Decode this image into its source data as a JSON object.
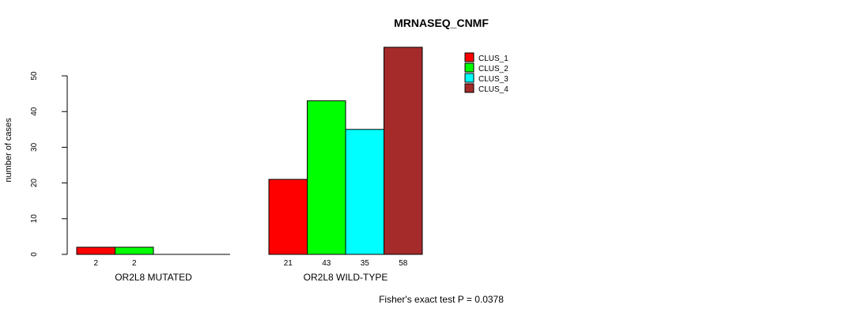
{
  "chart_data": {
    "type": "bar",
    "title": "MRNASEQ_CNMF",
    "ylabel": "number of cases",
    "xlabel": "",
    "ylim": [
      0,
      58
    ],
    "yticks": [
      0,
      10,
      20,
      30,
      40,
      50
    ],
    "grid": false,
    "legend_position": "top-right",
    "background_color": "#ffffff",
    "bar_border_color": "#000000",
    "series": [
      {
        "name": "CLUS_1",
        "color": "#ff0000"
      },
      {
        "name": "CLUS_2",
        "color": "#00ff00"
      },
      {
        "name": "CLUS_3",
        "color": "#00ffff"
      },
      {
        "name": "CLUS_4",
        "color": "#a52a2a"
      }
    ],
    "categories": [
      "OR2L8 MUTATED",
      "OR2L8 WILD-TYPE"
    ],
    "groups": [
      {
        "label": "OR2L8 MUTATED",
        "values": [
          2,
          2,
          0,
          0
        ],
        "bar_labels": [
          "2",
          "2",
          "",
          ""
        ]
      },
      {
        "label": "OR2L8 WILD-TYPE",
        "values": [
          21,
          43,
          35,
          58
        ],
        "bar_labels": [
          "21",
          "43",
          "35",
          "58"
        ]
      }
    ],
    "annotation": "Fisher's exact test P = 0.0378"
  }
}
